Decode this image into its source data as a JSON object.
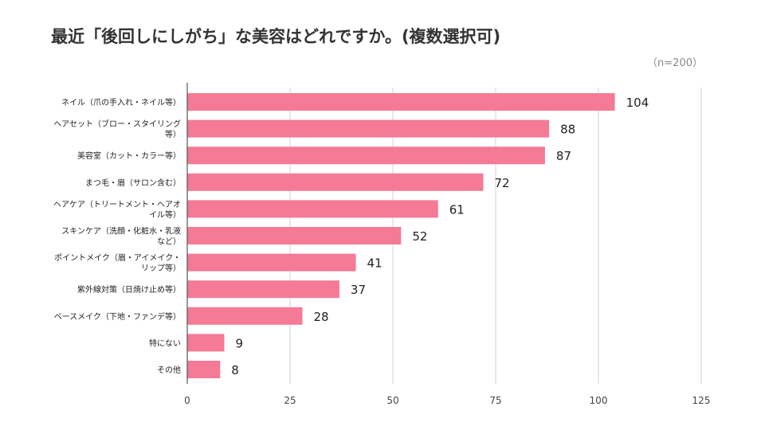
{
  "title": "最近「後回しにしがち」な美容はどれですか。(複数選択可)",
  "sample_note": "（n=200）",
  "colors": {
    "bar": "#f47a96",
    "grid": "#e3c9d3",
    "axis": "#555555"
  },
  "chart_data": {
    "type": "bar",
    "orientation": "horizontal",
    "title": "最近「後回しにしがち」な美容はどれですか。(複数選択可)",
    "categories": [
      [
        "ネイル（爪の手入れ・ネイル等）"
      ],
      [
        "ヘアセット（ブロー・スタイリング",
        "等）"
      ],
      [
        "美容室（カット・カラー等）"
      ],
      [
        "まつ毛・眉（サロン含む）"
      ],
      [
        "ヘアケア（トリートメント・ヘアオ",
        "イル等）"
      ],
      [
        "スキンケア（洗顔・化粧水・乳液",
        "など）"
      ],
      [
        "ポイントメイク（眉・アイメイク・",
        "リップ等）"
      ],
      [
        "紫外線対策（日焼け止め等）"
      ],
      [
        "ベースメイク（下地・ファンデ等）"
      ],
      [
        "特にない"
      ],
      [
        "その他"
      ]
    ],
    "values": [
      104,
      88,
      87,
      72,
      61,
      52,
      41,
      37,
      28,
      9,
      8
    ],
    "xlim": [
      0,
      125
    ],
    "xticks": [
      0,
      25,
      50,
      75,
      100,
      125
    ],
    "grid": true,
    "legend": "none"
  }
}
